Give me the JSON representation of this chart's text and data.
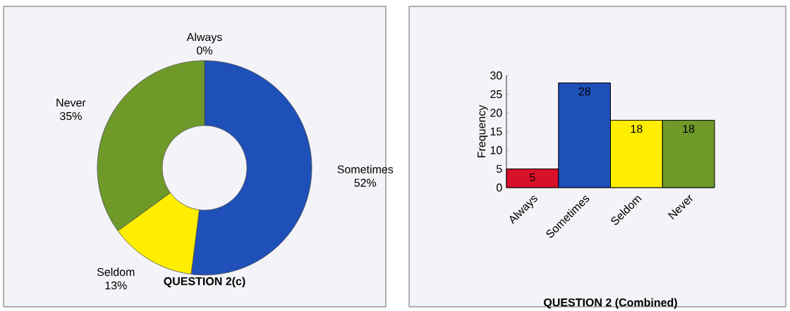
{
  "chart_data": [
    {
      "type": "donut",
      "title": "QUESTION 2(c)",
      "categories": [
        "Always",
        "Sometimes",
        "Seldom",
        "Never"
      ],
      "values": [
        0,
        52,
        13,
        35
      ],
      "value_labels": [
        "0%",
        "52%",
        "13%",
        "35%"
      ],
      "colors": [
        "#d8102a",
        "#1f4fb8",
        "#ffee00",
        "#6f9a2a"
      ]
    },
    {
      "type": "bar",
      "title": "QUESTION 2 (Combined)",
      "ylabel": "Frequency",
      "categories": [
        "Always",
        "Sometimes",
        "Seldom",
        "Never"
      ],
      "values": [
        5,
        28,
        18,
        18
      ],
      "colors": [
        "#d8102a",
        "#1f4fb8",
        "#ffee00",
        "#6f9a2a"
      ],
      "ylim": [
        0,
        30
      ],
      "yticks": [
        0,
        5,
        10,
        15,
        20,
        25,
        30
      ],
      "data_labels": true
    }
  ]
}
